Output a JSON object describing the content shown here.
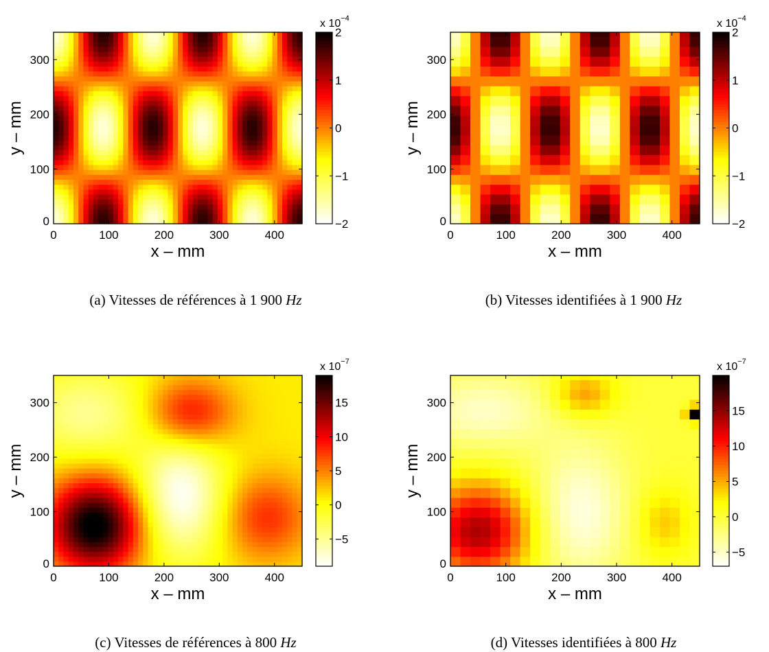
{
  "chart_data": [
    {
      "type": "heatmap",
      "caption_prefix": "(a) Vitesses de références à 1 900 ",
      "caption_unit": "Hz",
      "xlabel": "x  –  mm",
      "ylabel": "y  –  mm",
      "xlim": [
        0,
        450
      ],
      "ylim": [
        0,
        350
      ],
      "xticks": [
        "0",
        "100",
        "200",
        "300",
        "400"
      ],
      "yticks": [
        "0",
        "100",
        "200",
        "300"
      ],
      "colorbar": {
        "range": [
          -2,
          2
        ],
        "ticks": [
          "2",
          "1",
          "0",
          "−1",
          "−2"
        ],
        "exponent_base": "x 10",
        "exponent_power": "−4"
      },
      "resolution": "fine",
      "field": {
        "model": "standing-wave",
        "amplitude": 1.8,
        "nx": 5,
        "ny": 2,
        "x_offset": -0.5,
        "y_offset": 0,
        "phase_sign": 1
      }
    },
    {
      "type": "heatmap",
      "caption_prefix": "(b) Vitesses identifiées à 1 900 ",
      "caption_unit": "Hz",
      "xlabel": "x  –  mm",
      "ylabel": "y  –  mm",
      "xlim": [
        0,
        450
      ],
      "ylim": [
        0,
        350
      ],
      "xticks": [
        "0",
        "100",
        "200",
        "300",
        "400"
      ],
      "yticks": [
        "0",
        "100",
        "200",
        "300"
      ],
      "colorbar": {
        "range": [
          -2,
          2
        ],
        "ticks": [
          "2",
          "1",
          "0",
          "−1",
          "−2"
        ],
        "exponent_base": "x 10",
        "exponent_power": "−4"
      },
      "resolution": "coarse",
      "field": {
        "model": "standing-wave",
        "amplitude": 1.8,
        "nx": 5,
        "ny": 2,
        "x_offset": -0.5,
        "y_offset": 0,
        "phase_sign": 1
      }
    },
    {
      "type": "heatmap",
      "caption_prefix": "(c) Vitesses de références à 800 ",
      "caption_unit": "Hz",
      "xlabel": "x  –  mm",
      "ylabel": "y  –  mm",
      "xlim": [
        0,
        450
      ],
      "ylim": [
        0,
        350
      ],
      "xticks": [
        "0",
        "100",
        "200",
        "300",
        "400"
      ],
      "yticks": [
        "0",
        "100",
        "200",
        "300"
      ],
      "colorbar": {
        "range": [
          -9,
          19
        ],
        "ticks": [
          "15",
          "10",
          "5",
          "0",
          "−5"
        ],
        "exponent_base": "x 10",
        "exponent_power": "−7"
      },
      "resolution": "fine",
      "field": {
        "model": "gaussian-sum",
        "base": 1,
        "blobs": [
          {
            "x": 75,
            "y": 75,
            "amplitude": 19,
            "sigma_x": 60,
            "sigma_y": 60
          },
          {
            "x": 245,
            "y": 280,
            "amplitude": 9,
            "sigma_x": 55,
            "sigma_y": 45
          },
          {
            "x": 385,
            "y": 90,
            "amplitude": 7,
            "sigma_x": 55,
            "sigma_y": 55
          },
          {
            "x": 230,
            "y": 130,
            "amplitude": -10,
            "sigma_x": 55,
            "sigma_y": 80
          },
          {
            "x": 60,
            "y": 280,
            "amplitude": -6,
            "sigma_x": 80,
            "sigma_y": 60
          }
        ]
      }
    },
    {
      "type": "heatmap",
      "caption_prefix": "(d) Vitesses identifiées à 800 ",
      "caption_unit": "Hz",
      "xlabel": "x  –  mm",
      "ylabel": "y  –  mm",
      "xlim": [
        0,
        450
      ],
      "ylim": [
        0,
        350
      ],
      "xticks": [
        "0",
        "100",
        "200",
        "300",
        "400"
      ],
      "yticks": [
        "0",
        "100",
        "200",
        "300"
      ],
      "colorbar": {
        "range": [
          -7,
          20
        ],
        "ticks": [
          "15",
          "10",
          "5",
          "0",
          "−5"
        ],
        "exponent_base": "x 10",
        "exponent_power": "−7"
      },
      "resolution": "coarse",
      "field": {
        "model": "gaussian-sum",
        "base": 0,
        "blobs": [
          {
            "x": 50,
            "y": 65,
            "amplitude": 14,
            "sigma_x": 65,
            "sigma_y": 60
          },
          {
            "x": 240,
            "y": 315,
            "amplitude": 6,
            "sigma_x": 40,
            "sigma_y": 30
          },
          {
            "x": 385,
            "y": 80,
            "amplitude": 4,
            "sigma_x": 35,
            "sigma_y": 45
          },
          {
            "x": 235,
            "y": 100,
            "amplitude": -6,
            "sigma_x": 60,
            "sigma_y": 90
          },
          {
            "x": 60,
            "y": 285,
            "amplitude": -5,
            "sigma_x": 90,
            "sigma_y": 50
          },
          {
            "x": 440,
            "y": 280,
            "amplitude": 20,
            "sigma_x": 9,
            "sigma_y": 9
          }
        ]
      }
    }
  ]
}
